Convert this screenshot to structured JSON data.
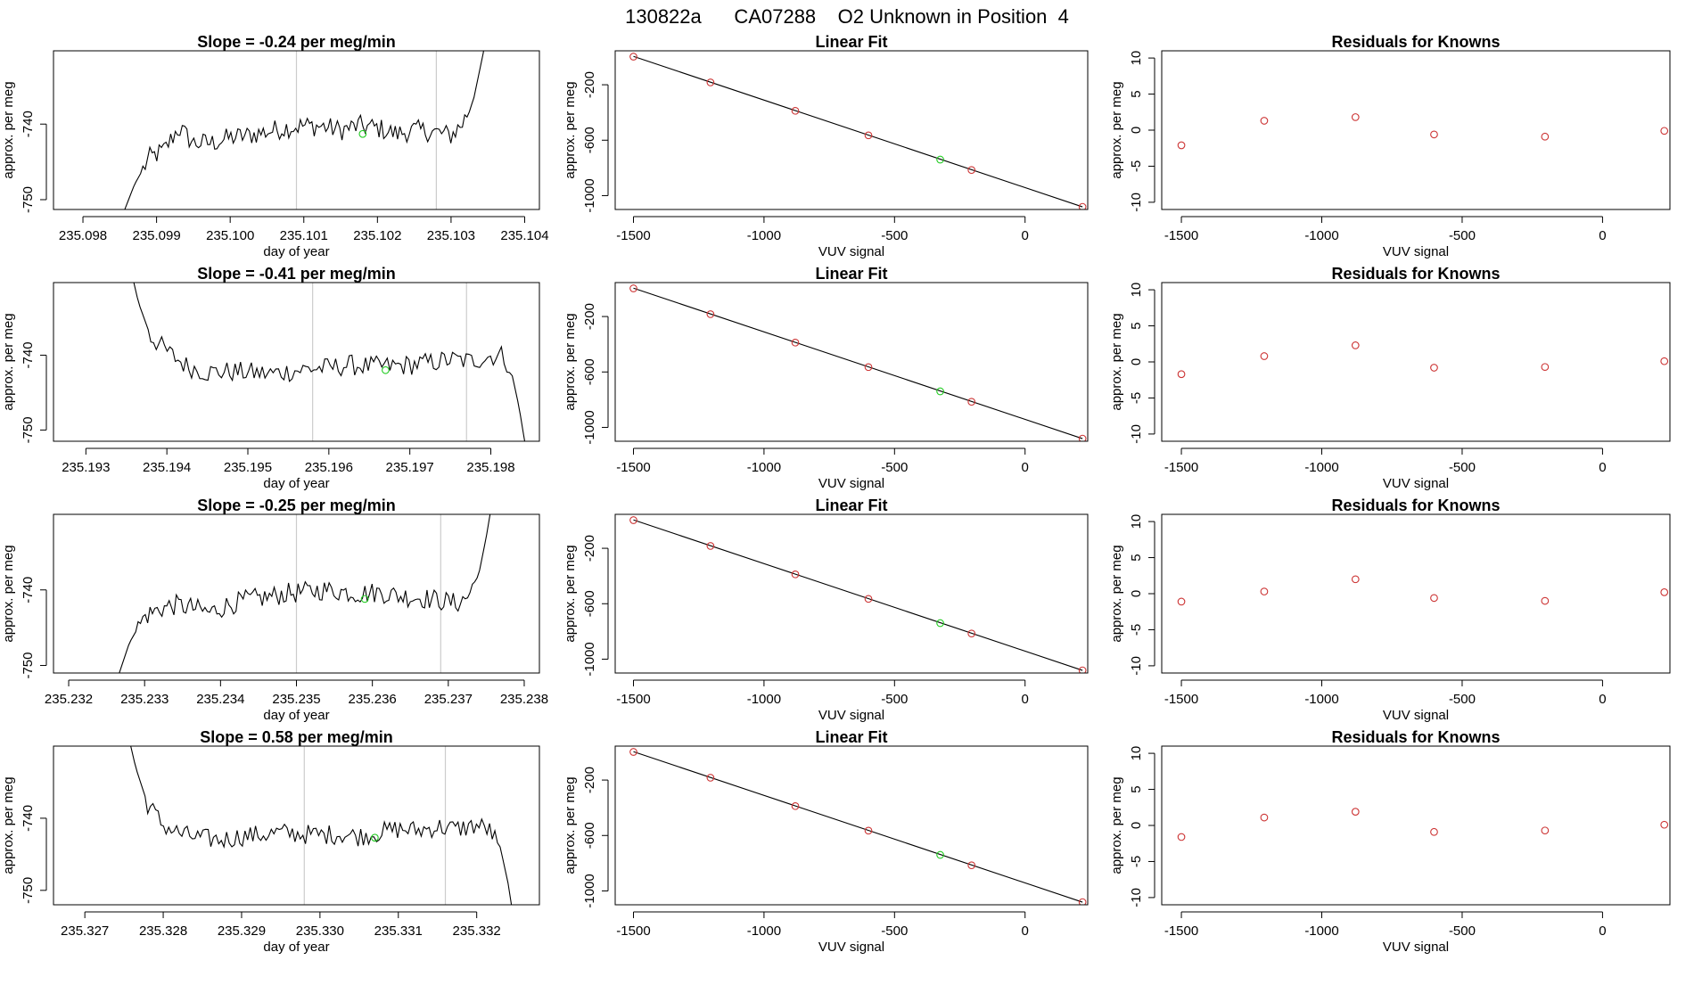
{
  "page_title": "130822a      CA07288    O2 Unknown in Position  4",
  "colors": {
    "trace": "#000000",
    "known_point": "#cc3333",
    "unknown_point": "#22cc22",
    "marker_line": "#cccccc",
    "fit_line": "#000000"
  },
  "chart_data": [
    {
      "type": "line",
      "title": "Slope =  -0.24  per meg/min",
      "xlabel": "day of year",
      "ylabel": "approx. per meg",
      "xlim": [
        235.0976,
        235.1042
      ],
      "ylim": [
        -751.3,
        -730.3
      ],
      "xticks": [
        235.098,
        235.099,
        235.1,
        235.101,
        235.102,
        235.103,
        235.104
      ],
      "xtick_labels": [
        "235.098",
        "235.099",
        "235.100",
        "235.101",
        "235.102",
        "235.103",
        "235.104"
      ],
      "yticks": [
        -750,
        -740
      ],
      "ytick_labels": [
        "-750",
        "-740"
      ],
      "vlines": [
        235.1009,
        235.1028
      ],
      "trace": {
        "x0": 235.0985,
        "x1": 235.1035,
        "n": 160,
        "keys": [
          [
            0,
            -753
          ],
          [
            0.04,
            -748
          ],
          [
            0.08,
            -744.5
          ],
          [
            0.12,
            -743.5
          ],
          [
            0.16,
            -740.5
          ],
          [
            0.2,
            -742.5
          ],
          [
            0.25,
            -742.5
          ],
          [
            0.3,
            -741.8
          ],
          [
            0.35,
            -741.5
          ],
          [
            0.4,
            -741
          ],
          [
            0.45,
            -740.5
          ],
          [
            0.5,
            -740.2
          ],
          [
            0.55,
            -740.3
          ],
          [
            0.6,
            -740.8
          ],
          [
            0.65,
            -740.2
          ],
          [
            0.7,
            -740.5
          ],
          [
            0.75,
            -741.3
          ],
          [
            0.8,
            -740.8
          ],
          [
            0.85,
            -741
          ],
          [
            0.88,
            -741.3
          ],
          [
            0.9,
            -741.5
          ],
          [
            0.93,
            -740
          ],
          [
            0.96,
            -737
          ],
          [
            0.99,
            -730
          ],
          [
            1.0,
            -726
          ]
        ],
        "wiggle": 1.4
      },
      "unknown_point": {
        "x": 235.1018,
        "y": -741.3
      }
    },
    {
      "type": "scatter",
      "title": "Linear Fit",
      "xlabel": "VUV signal",
      "ylabel": "approx. per meg",
      "xlim": [
        -1570,
        240
      ],
      "ylim": [
        -1100,
        45
      ],
      "xticks": [
        -1500,
        -1000,
        -500,
        0
      ],
      "xtick_labels": [
        "-1500",
        "-1000",
        "-500",
        "0"
      ],
      "yticks": [
        -1000,
        -600,
        -200
      ],
      "ytick_labels": [
        "-1000",
        "-600",
        "-200"
      ],
      "fit_line": {
        "x": [
          -1500,
          220
        ],
        "y": [
          5,
          -1081
        ]
      },
      "known_points": {
        "x": [
          -1500,
          -1205,
          -880,
          -600,
          -205,
          220
        ],
        "y": [
          3,
          -183,
          -388,
          -565,
          -815,
          -1081
        ]
      },
      "unknown_point": {
        "x": -325,
        "y": -740
      }
    },
    {
      "type": "scatter",
      "title": "Residuals for Knowns",
      "xlabel": "VUV signal",
      "ylabel": "approx. per meg",
      "xlim": [
        -1570,
        240
      ],
      "ylim": [
        -11,
        11
      ],
      "xticks": [
        -1500,
        -1000,
        -500,
        0
      ],
      "xtick_labels": [
        "-1500",
        "-1000",
        "-500",
        "0"
      ],
      "yticks": [
        -10,
        -5,
        0,
        5,
        10
      ],
      "ytick_labels": [
        "-10",
        "-5",
        "0",
        "5",
        "10"
      ],
      "known_points": {
        "x": [
          -1500,
          -1205,
          -880,
          -600,
          -205,
          220
        ],
        "y": [
          -2.1,
          1.3,
          1.8,
          -0.6,
          -0.9,
          -0.1
        ]
      }
    },
    {
      "type": "line",
      "title": "Slope =  -0.41  per meg/min",
      "xlabel": "day of year",
      "ylabel": "approx. per meg",
      "xlim": [
        235.1926,
        235.1986
      ],
      "ylim": [
        -751.5,
        -730.3
      ],
      "xticks": [
        235.193,
        235.194,
        235.195,
        235.196,
        235.197,
        235.198
      ],
      "xtick_labels": [
        "235.193",
        "235.194",
        "235.195",
        "235.196",
        "235.197",
        "235.198"
      ],
      "yticks": [
        -750,
        -740
      ],
      "ytick_labels": [
        "-750",
        "-740"
      ],
      "vlines": [
        235.1958,
        235.1977
      ],
      "trace": {
        "x0": 235.1935,
        "x1": 235.1985,
        "n": 150,
        "keys": [
          [
            0,
            -726
          ],
          [
            0.03,
            -733
          ],
          [
            0.06,
            -737.5
          ],
          [
            0.1,
            -739.5
          ],
          [
            0.15,
            -741.5
          ],
          [
            0.2,
            -742.3
          ],
          [
            0.25,
            -742.2
          ],
          [
            0.3,
            -742.3
          ],
          [
            0.35,
            -742.5
          ],
          [
            0.4,
            -742.2
          ],
          [
            0.45,
            -741.8
          ],
          [
            0.5,
            -741.7
          ],
          [
            0.55,
            -741.3
          ],
          [
            0.6,
            -741.5
          ],
          [
            0.65,
            -741.5
          ],
          [
            0.7,
            -741.3
          ],
          [
            0.75,
            -741
          ],
          [
            0.8,
            -740.6
          ],
          [
            0.85,
            -740.8
          ],
          [
            0.9,
            -740.1
          ],
          [
            0.93,
            -740
          ],
          [
            0.95,
            -742
          ],
          [
            0.97,
            -747
          ],
          [
            0.985,
            -752
          ],
          [
            1.0,
            -756
          ]
        ],
        "wiggle": 1.4
      },
      "unknown_point": {
        "x": 235.1967,
        "y": -742.0
      }
    },
    {
      "type": "scatter",
      "title": "Linear Fit",
      "xlabel": "VUV signal",
      "ylabel": "approx. per meg",
      "xlim": [
        -1570,
        240
      ],
      "ylim": [
        -1100,
        45
      ],
      "xticks": [
        -1500,
        -1000,
        -500,
        0
      ],
      "xtick_labels": [
        "-1500",
        "-1000",
        "-500",
        "0"
      ],
      "yticks": [
        -1000,
        -600,
        -200
      ],
      "ytick_labels": [
        "-1000",
        "-600",
        "-200"
      ],
      "fit_line": {
        "x": [
          -1500,
          220
        ],
        "y": [
          5,
          -1081
        ]
      },
      "known_points": {
        "x": [
          -1500,
          -1205,
          -880,
          -600,
          -205,
          220
        ],
        "y": [
          3,
          -183,
          -388,
          -565,
          -815,
          -1081
        ]
      },
      "unknown_point": {
        "x": -325,
        "y": -740
      }
    },
    {
      "type": "scatter",
      "title": "Residuals for Knowns",
      "xlabel": "VUV signal",
      "ylabel": "approx. per meg",
      "xlim": [
        -1570,
        240
      ],
      "ylim": [
        -11,
        11
      ],
      "xticks": [
        -1500,
        -1000,
        -500,
        0
      ],
      "xtick_labels": [
        "-1500",
        "-1000",
        "-500",
        "0"
      ],
      "yticks": [
        -10,
        -5,
        0,
        5,
        10
      ],
      "ytick_labels": [
        "-10",
        "-5",
        "0",
        "5",
        "10"
      ],
      "known_points": {
        "x": [
          -1500,
          -1205,
          -880,
          -600,
          -205,
          220
        ],
        "y": [
          -1.7,
          0.8,
          2.3,
          -0.8,
          -0.7,
          0.1
        ]
      }
    },
    {
      "type": "line",
      "title": "Slope =  -0.25  per meg/min",
      "xlabel": "day of year",
      "ylabel": "approx. per meg",
      "xlim": [
        235.2318,
        235.2382
      ],
      "ylim": [
        -751.0,
        -730.0
      ],
      "xticks": [
        235.232,
        235.233,
        235.234,
        235.235,
        235.236,
        235.237,
        235.238
      ],
      "xtick_labels": [
        "235.232",
        "235.233",
        "235.234",
        "235.235",
        "235.236",
        "235.237",
        "235.238"
      ],
      "yticks": [
        -750,
        -740
      ],
      "ytick_labels": [
        "-750",
        "-740"
      ],
      "vlines": [
        235.235,
        235.2369
      ],
      "trace": {
        "x0": 235.2326,
        "x1": 235.2376,
        "n": 160,
        "keys": [
          [
            0,
            -753
          ],
          [
            0.04,
            -747
          ],
          [
            0.08,
            -743.5
          ],
          [
            0.12,
            -742.5
          ],
          [
            0.16,
            -742
          ],
          [
            0.2,
            -742.3
          ],
          [
            0.25,
            -743
          ],
          [
            0.3,
            -742
          ],
          [
            0.35,
            -741.3
          ],
          [
            0.4,
            -741
          ],
          [
            0.45,
            -740.5
          ],
          [
            0.5,
            -740.3
          ],
          [
            0.55,
            -740
          ],
          [
            0.6,
            -740.2
          ],
          [
            0.65,
            -740.5
          ],
          [
            0.7,
            -740.3
          ],
          [
            0.75,
            -740.8
          ],
          [
            0.8,
            -741
          ],
          [
            0.85,
            -741.3
          ],
          [
            0.9,
            -741.8
          ],
          [
            0.93,
            -741
          ],
          [
            0.96,
            -738
          ],
          [
            0.98,
            -733
          ],
          [
            1.0,
            -727
          ]
        ],
        "wiggle": 1.4
      },
      "unknown_point": {
        "x": 235.2359,
        "y": -741.2
      }
    },
    {
      "type": "scatter",
      "title": "Linear Fit",
      "xlabel": "VUV signal",
      "ylabel": "approx. per meg",
      "xlim": [
        -1570,
        240
      ],
      "ylim": [
        -1100,
        45
      ],
      "xticks": [
        -1500,
        -1000,
        -500,
        0
      ],
      "xtick_labels": [
        "-1500",
        "-1000",
        "-500",
        "0"
      ],
      "yticks": [
        -1000,
        -600,
        -200
      ],
      "ytick_labels": [
        "-1000",
        "-600",
        "-200"
      ],
      "fit_line": {
        "x": [
          -1500,
          220
        ],
        "y": [
          5,
          -1081
        ]
      },
      "known_points": {
        "x": [
          -1500,
          -1205,
          -880,
          -600,
          -205,
          220
        ],
        "y": [
          3,
          -183,
          -388,
          -565,
          -815,
          -1081
        ]
      },
      "unknown_point": {
        "x": -325,
        "y": -740
      }
    },
    {
      "type": "scatter",
      "title": "Residuals for Knowns",
      "xlabel": "VUV signal",
      "ylabel": "approx. per meg",
      "xlim": [
        -1570,
        240
      ],
      "ylim": [
        -11,
        11
      ],
      "xticks": [
        -1500,
        -1000,
        -500,
        0
      ],
      "xtick_labels": [
        "-1500",
        "-1000",
        "-500",
        "0"
      ],
      "yticks": [
        -10,
        -5,
        0,
        5,
        10
      ],
      "ytick_labels": [
        "-10",
        "-5",
        "0",
        "5",
        "10"
      ],
      "known_points": {
        "x": [
          -1500,
          -1205,
          -880,
          -600,
          -205,
          220
        ],
        "y": [
          -1.1,
          0.3,
          2.0,
          -0.6,
          -1.0,
          0.2
        ]
      }
    },
    {
      "type": "line",
      "title": "Slope =  0.58  per meg/min",
      "xlabel": "day of year",
      "ylabel": "approx. per meg",
      "xlim": [
        235.3266,
        235.3328
      ],
      "ylim": [
        -752.0,
        -730.0
      ],
      "xticks": [
        235.327,
        235.328,
        235.329,
        235.33,
        235.331,
        235.332
      ],
      "xtick_labels": [
        "235.327",
        "235.328",
        "235.329",
        "235.330",
        "235.331",
        "235.332"
      ],
      "yticks": [
        -750,
        -740
      ],
      "ytick_labels": [
        "-750",
        "-740"
      ],
      "vlines": [
        235.3298,
        235.3316
      ],
      "trace": {
        "x0": 235.3275,
        "x1": 235.3325,
        "n": 150,
        "keys": [
          [
            0,
            -726
          ],
          [
            0.03,
            -733
          ],
          [
            0.06,
            -738
          ],
          [
            0.1,
            -741
          ],
          [
            0.15,
            -742.3
          ],
          [
            0.2,
            -742.8
          ],
          [
            0.25,
            -743
          ],
          [
            0.3,
            -742.5
          ],
          [
            0.35,
            -742.3
          ],
          [
            0.4,
            -742
          ],
          [
            0.45,
            -742.2
          ],
          [
            0.5,
            -742.3
          ],
          [
            0.55,
            -742.2
          ],
          [
            0.6,
            -742.5
          ],
          [
            0.65,
            -742
          ],
          [
            0.7,
            -741.5
          ],
          [
            0.75,
            -741.7
          ],
          [
            0.8,
            -741.2
          ],
          [
            0.85,
            -741.5
          ],
          [
            0.9,
            -741
          ],
          [
            0.93,
            -741.5
          ],
          [
            0.96,
            -744
          ],
          [
            0.98,
            -749
          ],
          [
            1.0,
            -756
          ]
        ],
        "wiggle": 1.4
      },
      "unknown_point": {
        "x": 235.3307,
        "y": -742.7
      }
    },
    {
      "type": "scatter",
      "title": "Linear Fit",
      "xlabel": "VUV signal",
      "ylabel": "approx. per meg",
      "xlim": [
        -1570,
        240
      ],
      "ylim": [
        -1100,
        45
      ],
      "xticks": [
        -1500,
        -1000,
        -500,
        0
      ],
      "xtick_labels": [
        "-1500",
        "-1000",
        "-500",
        "0"
      ],
      "yticks": [
        -1000,
        -600,
        -200
      ],
      "ytick_labels": [
        "-1000",
        "-600",
        "-200"
      ],
      "fit_line": {
        "x": [
          -1500,
          220
        ],
        "y": [
          5,
          -1081
        ]
      },
      "known_points": {
        "x": [
          -1500,
          -1205,
          -880,
          -600,
          -205,
          220
        ],
        "y": [
          3,
          -183,
          -388,
          -565,
          -815,
          -1081
        ]
      },
      "unknown_point": {
        "x": -325,
        "y": -740
      }
    },
    {
      "type": "scatter",
      "title": "Residuals for Knowns",
      "xlabel": "VUV signal",
      "ylabel": "approx. per meg",
      "xlim": [
        -1570,
        240
      ],
      "ylim": [
        -11,
        11
      ],
      "xticks": [
        -1500,
        -1000,
        -500,
        0
      ],
      "xtick_labels": [
        "-1500",
        "-1000",
        "-500",
        "0"
      ],
      "yticks": [
        -10,
        -5,
        0,
        5,
        10
      ],
      "ytick_labels": [
        "-10",
        "-5",
        "0",
        "5",
        "10"
      ],
      "known_points": {
        "x": [
          -1500,
          -1205,
          -880,
          -600,
          -205,
          220
        ],
        "y": [
          -1.6,
          1.1,
          1.9,
          -0.9,
          -0.7,
          0.1
        ]
      }
    }
  ]
}
